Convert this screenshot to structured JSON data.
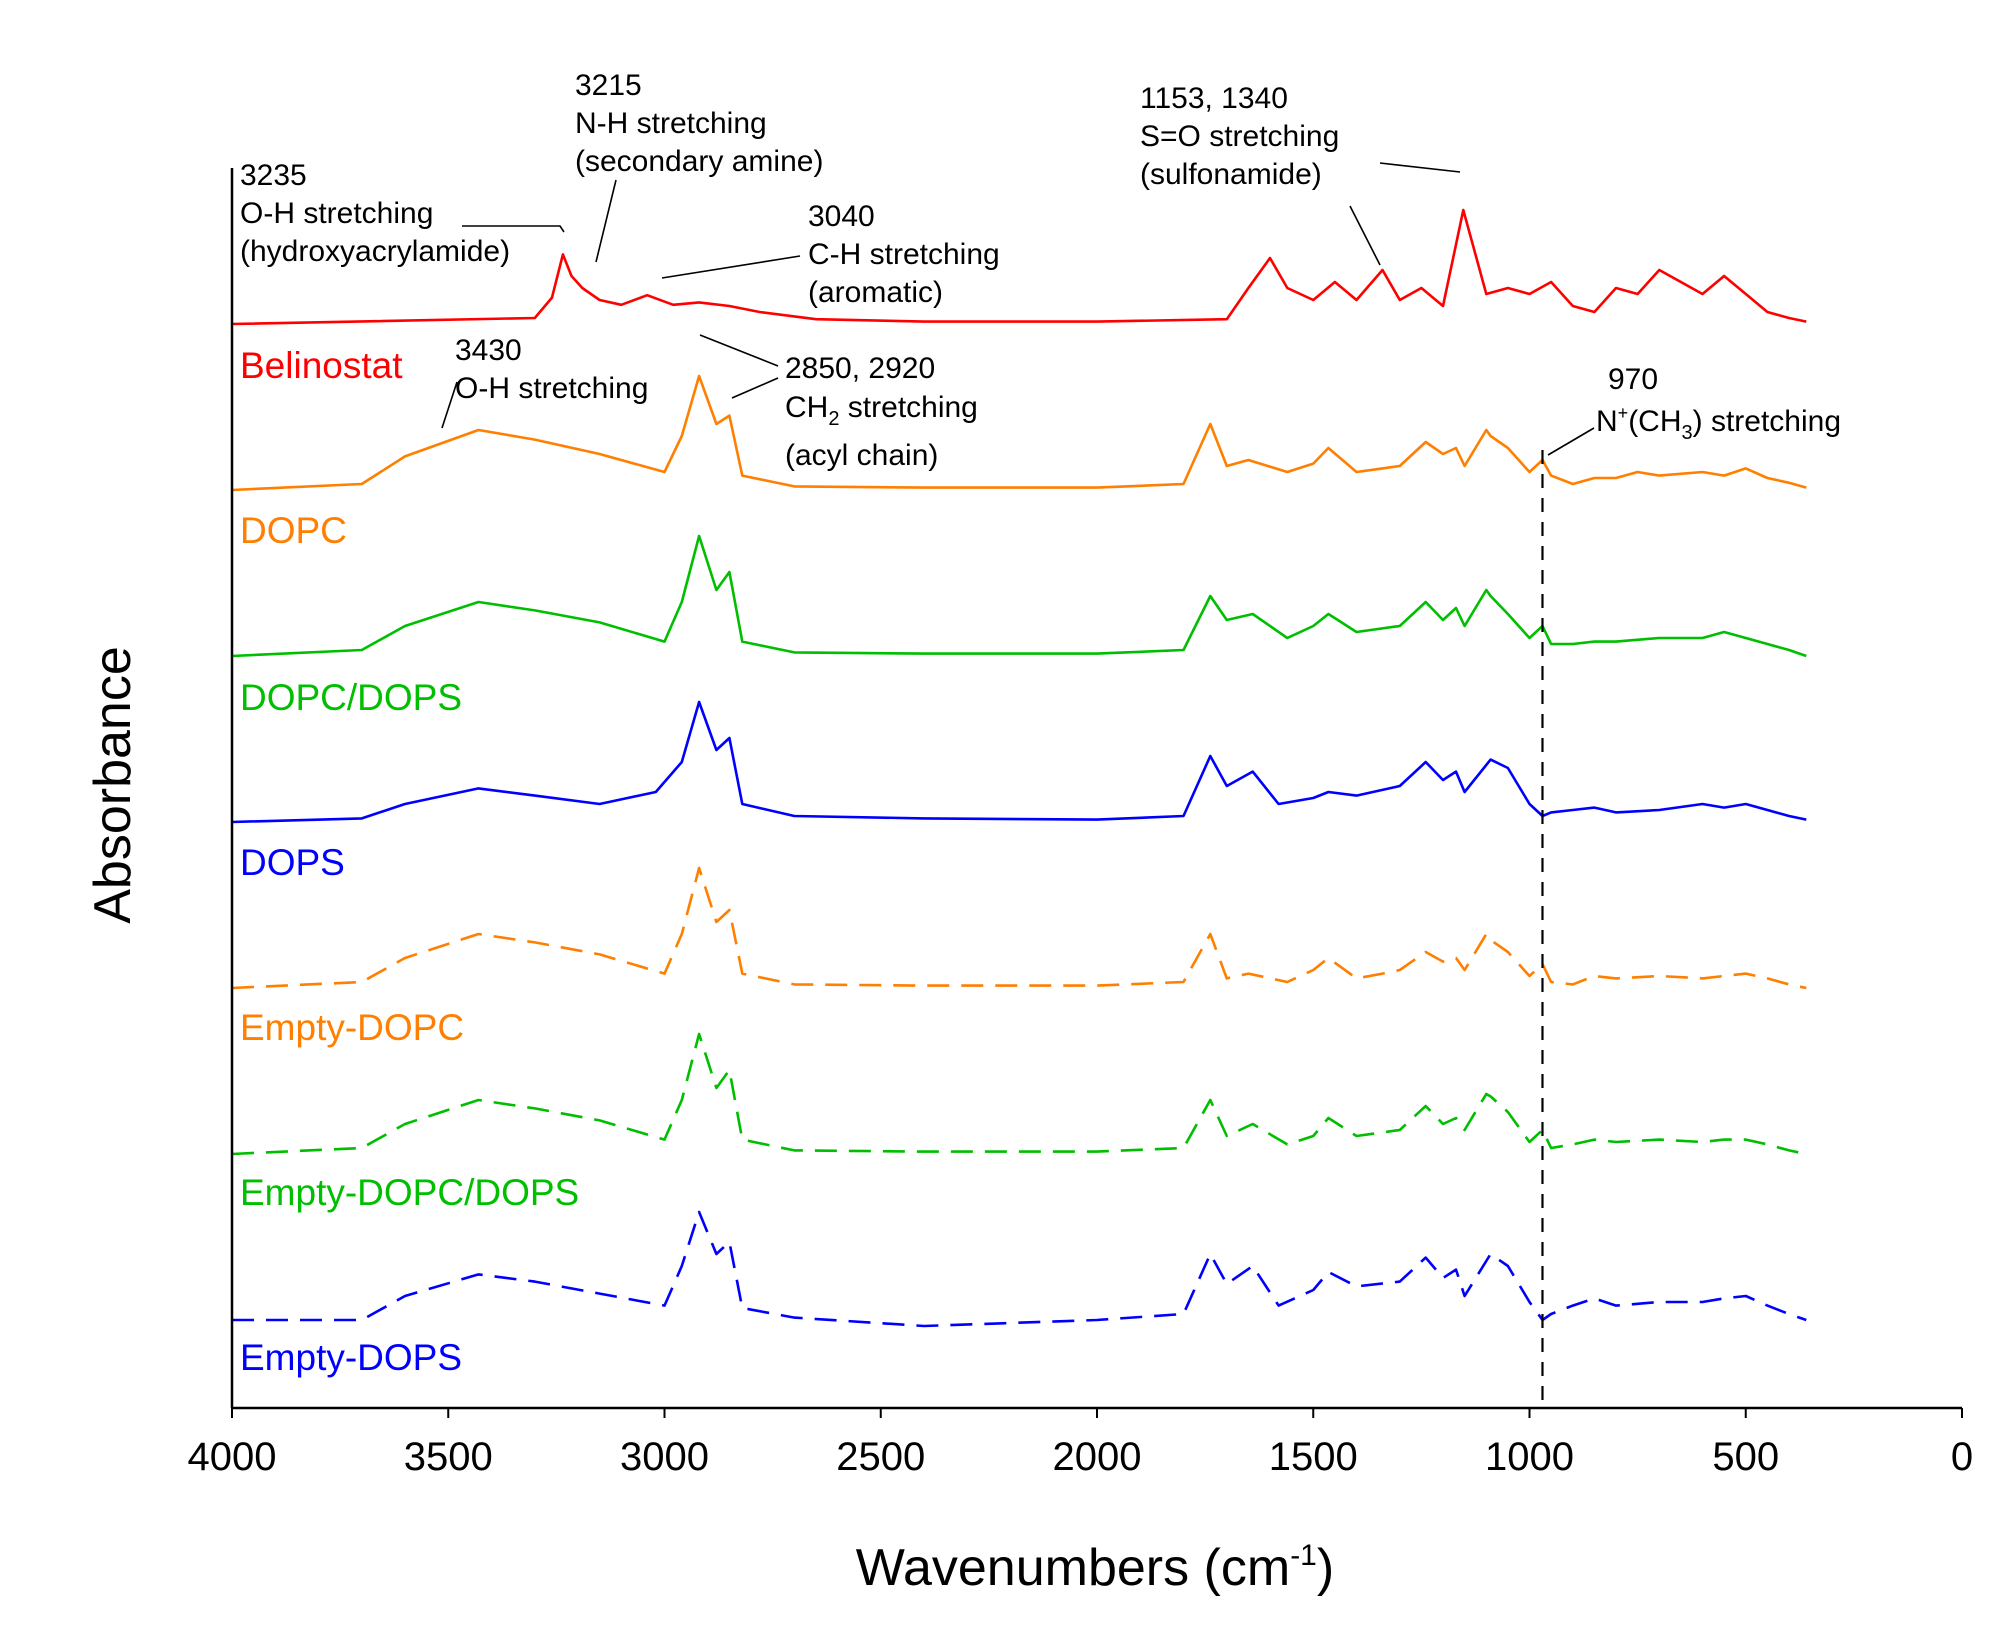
{
  "chart_data": {
    "type": "line",
    "title": "",
    "xlabel_text": "Wavenumbers (cm",
    "xlabel_sup": "-1",
    "xlabel_close": ")",
    "ylabel": "Absorbance",
    "xlim": [
      4000,
      0
    ],
    "x_reversed": true,
    "x_ticks": [
      4000,
      3500,
      3000,
      2500,
      2000,
      1500,
      1000,
      500,
      0
    ],
    "x_tick_labels": [
      "4000",
      "3500",
      "3000",
      "2500",
      "2000",
      "1500",
      "1000",
      "500",
      "0"
    ],
    "y_ticks_shown": false,
    "grid": false,
    "legend": "series labels placed below each trace on the left",
    "reference_line": {
      "x": 970,
      "style": "dashed"
    },
    "series": [
      {
        "name": "Belinostat",
        "color": "#ff0000",
        "dash": "solid",
        "offset": 7,
        "x": [
          4000,
          3300,
          3260,
          3235,
          3215,
          3190,
          3150,
          3100,
          3040,
          2980,
          2920,
          2850,
          2780,
          2650,
          2400,
          2000,
          1700,
          1650,
          1600,
          1560,
          1500,
          1450,
          1400,
          1340,
          1300,
          1250,
          1200,
          1153,
          1100,
          1050,
          1000,
          950,
          900,
          850,
          800,
          750,
          700,
          650,
          600,
          550,
          500,
          450,
          400,
          360
        ],
        "values": [
          0.0,
          0.05,
          0.22,
          0.58,
          0.4,
          0.3,
          0.2,
          0.16,
          0.24,
          0.16,
          0.18,
          0.15,
          0.1,
          0.04,
          0.02,
          0.02,
          0.04,
          0.3,
          0.55,
          0.3,
          0.2,
          0.35,
          0.2,
          0.45,
          0.2,
          0.3,
          0.15,
          0.95,
          0.25,
          0.3,
          0.25,
          0.35,
          0.15,
          0.1,
          0.3,
          0.25,
          0.45,
          0.35,
          0.25,
          0.4,
          0.25,
          0.1,
          0.05,
          0.02
        ]
      },
      {
        "name": "DOPC",
        "color": "#ff7f00",
        "dash": "solid",
        "offset": 6,
        "x": [
          4000,
          3700,
          3600,
          3430,
          3300,
          3150,
          3000,
          2960,
          2920,
          2880,
          2850,
          2820,
          2700,
          2400,
          2000,
          1800,
          1738,
          1700,
          1650,
          1560,
          1500,
          1465,
          1400,
          1340,
          1300,
          1240,
          1200,
          1170,
          1150,
          1100,
          1090,
          1050,
          1000,
          970,
          950,
          900,
          850,
          800,
          750,
          700,
          600,
          550,
          500,
          450,
          400,
          360
        ],
        "values": [
          0.0,
          0.05,
          0.28,
          0.5,
          0.42,
          0.3,
          0.15,
          0.45,
          0.95,
          0.55,
          0.62,
          0.12,
          0.03,
          0.02,
          0.02,
          0.05,
          0.55,
          0.2,
          0.25,
          0.15,
          0.22,
          0.35,
          0.15,
          0.18,
          0.2,
          0.4,
          0.3,
          0.35,
          0.2,
          0.5,
          0.45,
          0.35,
          0.15,
          0.25,
          0.12,
          0.05,
          0.1,
          0.1,
          0.15,
          0.12,
          0.15,
          0.12,
          0.18,
          0.1,
          0.06,
          0.02
        ]
      },
      {
        "name": "DOPC/DOPS",
        "color": "#00bf00",
        "dash": "solid",
        "offset": 5,
        "x": [
          4000,
          3700,
          3600,
          3430,
          3300,
          3150,
          3000,
          2960,
          2920,
          2880,
          2850,
          2820,
          2700,
          2400,
          2000,
          1800,
          1738,
          1700,
          1640,
          1560,
          1500,
          1465,
          1400,
          1300,
          1240,
          1200,
          1170,
          1150,
          1100,
          1090,
          1050,
          1000,
          970,
          950,
          900,
          850,
          800,
          700,
          600,
          550,
          500,
          450,
          400,
          360
        ],
        "values": [
          0.0,
          0.05,
          0.25,
          0.45,
          0.38,
          0.28,
          0.12,
          0.45,
          1.0,
          0.55,
          0.7,
          0.12,
          0.03,
          0.02,
          0.02,
          0.05,
          0.5,
          0.3,
          0.35,
          0.15,
          0.25,
          0.35,
          0.2,
          0.25,
          0.45,
          0.3,
          0.4,
          0.25,
          0.55,
          0.5,
          0.35,
          0.15,
          0.25,
          0.1,
          0.1,
          0.12,
          0.12,
          0.15,
          0.15,
          0.2,
          0.15,
          0.1,
          0.05,
          0.0
        ]
      },
      {
        "name": "DOPS",
        "color": "#0000ff",
        "dash": "solid",
        "offset": 4,
        "x": [
          4000,
          3700,
          3600,
          3430,
          3300,
          3150,
          3020,
          2960,
          2920,
          2880,
          2850,
          2820,
          2700,
          2400,
          2000,
          1800,
          1738,
          1700,
          1640,
          1580,
          1500,
          1465,
          1400,
          1300,
          1240,
          1200,
          1170,
          1150,
          1090,
          1050,
          1000,
          970,
          950,
          900,
          850,
          800,
          700,
          600,
          550,
          500,
          450,
          400,
          360
        ],
        "values": [
          0.0,
          0.03,
          0.15,
          0.28,
          0.22,
          0.15,
          0.25,
          0.5,
          1.0,
          0.6,
          0.7,
          0.15,
          0.05,
          0.03,
          0.02,
          0.05,
          0.55,
          0.3,
          0.42,
          0.15,
          0.2,
          0.25,
          0.22,
          0.3,
          0.5,
          0.35,
          0.42,
          0.25,
          0.52,
          0.45,
          0.15,
          0.05,
          0.08,
          0.1,
          0.12,
          0.08,
          0.1,
          0.15,
          0.12,
          0.15,
          0.1,
          0.05,
          0.02
        ]
      },
      {
        "name": "Empty-DOPC",
        "color": "#ff7f00",
        "dash": "dashed",
        "offset": 3,
        "x": [
          4000,
          3700,
          3600,
          3430,
          3300,
          3150,
          3000,
          2960,
          2920,
          2880,
          2850,
          2820,
          2700,
          2400,
          2000,
          1800,
          1738,
          1700,
          1650,
          1560,
          1500,
          1465,
          1400,
          1340,
          1300,
          1240,
          1200,
          1170,
          1150,
          1100,
          1090,
          1050,
          1000,
          970,
          950,
          900,
          850,
          800,
          700,
          600,
          550,
          500,
          450,
          400,
          360
        ],
        "values": [
          0.0,
          0.05,
          0.25,
          0.45,
          0.38,
          0.28,
          0.12,
          0.45,
          1.0,
          0.55,
          0.65,
          0.12,
          0.03,
          0.02,
          0.02,
          0.05,
          0.45,
          0.08,
          0.12,
          0.05,
          0.15,
          0.25,
          0.08,
          0.12,
          0.15,
          0.3,
          0.22,
          0.25,
          0.15,
          0.45,
          0.4,
          0.3,
          0.1,
          0.2,
          0.05,
          0.03,
          0.1,
          0.08,
          0.1,
          0.08,
          0.1,
          0.12,
          0.08,
          0.03,
          0.0
        ]
      },
      {
        "name": "Empty-DOPC/DOPS",
        "color": "#00bf00",
        "dash": "dashed",
        "offset": 2,
        "x": [
          4000,
          3700,
          3600,
          3430,
          3300,
          3150,
          3000,
          2960,
          2920,
          2880,
          2850,
          2820,
          2700,
          2400,
          2000,
          1800,
          1738,
          1700,
          1640,
          1560,
          1500,
          1465,
          1400,
          1300,
          1240,
          1200,
          1170,
          1150,
          1100,
          1090,
          1050,
          1000,
          970,
          950,
          900,
          850,
          800,
          700,
          600,
          550,
          500,
          450,
          400,
          360
        ],
        "values": [
          0.0,
          0.05,
          0.25,
          0.45,
          0.38,
          0.28,
          0.12,
          0.45,
          1.0,
          0.55,
          0.7,
          0.12,
          0.03,
          0.02,
          0.02,
          0.05,
          0.45,
          0.15,
          0.25,
          0.08,
          0.15,
          0.3,
          0.15,
          0.2,
          0.4,
          0.25,
          0.3,
          0.2,
          0.5,
          0.48,
          0.35,
          0.1,
          0.2,
          0.05,
          0.08,
          0.12,
          0.1,
          0.12,
          0.1,
          0.12,
          0.12,
          0.08,
          0.03,
          0.0
        ]
      },
      {
        "name": "Empty-DOPS",
        "color": "#0000ff",
        "dash": "dashed",
        "offset": 1,
        "x": [
          4000,
          3700,
          3600,
          3430,
          3300,
          3150,
          3000,
          2960,
          2920,
          2880,
          2850,
          2820,
          2700,
          2400,
          2000,
          1800,
          1738,
          1700,
          1640,
          1580,
          1500,
          1465,
          1400,
          1300,
          1240,
          1200,
          1170,
          1150,
          1090,
          1050,
          1000,
          970,
          950,
          900,
          850,
          800,
          700,
          600,
          550,
          500,
          450,
          400,
          360
        ],
        "values": [
          0.0,
          0.0,
          0.2,
          0.38,
          0.32,
          0.22,
          0.12,
          0.45,
          0.9,
          0.55,
          0.65,
          0.1,
          0.02,
          -0.05,
          0.0,
          0.05,
          0.55,
          0.3,
          0.45,
          0.12,
          0.25,
          0.4,
          0.28,
          0.32,
          0.52,
          0.35,
          0.42,
          0.2,
          0.55,
          0.45,
          0.15,
          0.0,
          0.05,
          0.12,
          0.18,
          0.12,
          0.15,
          0.15,
          0.18,
          0.2,
          0.12,
          0.05,
          0.0
        ]
      }
    ],
    "annotations": [
      {
        "id": "oh-belinostat",
        "lines": [
          "3235",
          "O-H stretching",
          "(hydroxyacrylamide)"
        ]
      },
      {
        "id": "nh",
        "lines": [
          "3215",
          "N-H stretching",
          "(secondary amine)"
        ]
      },
      {
        "id": "ch-aromatic",
        "lines": [
          "3040",
          "C-H stretching",
          "(aromatic)"
        ]
      },
      {
        "id": "so",
        "lines": [
          "1153, 1340",
          "S=O stretching",
          "(sulfonamide)"
        ]
      },
      {
        "id": "oh-dopc",
        "lines": [
          "3430",
          "O-H stretching"
        ]
      },
      {
        "id": "ch2",
        "line1": "2850, 2920",
        "line2_pre": "CH",
        "line2_sub": "2",
        "line2_post": " stretching",
        "line3": "(acyl chain)"
      },
      {
        "id": "nch3",
        "line1": "970",
        "line2_pre": "N",
        "line2_sup": "+",
        "line2_mid": "(CH",
        "line2_sub": "3",
        "line2_post": ") stretching"
      }
    ]
  }
}
